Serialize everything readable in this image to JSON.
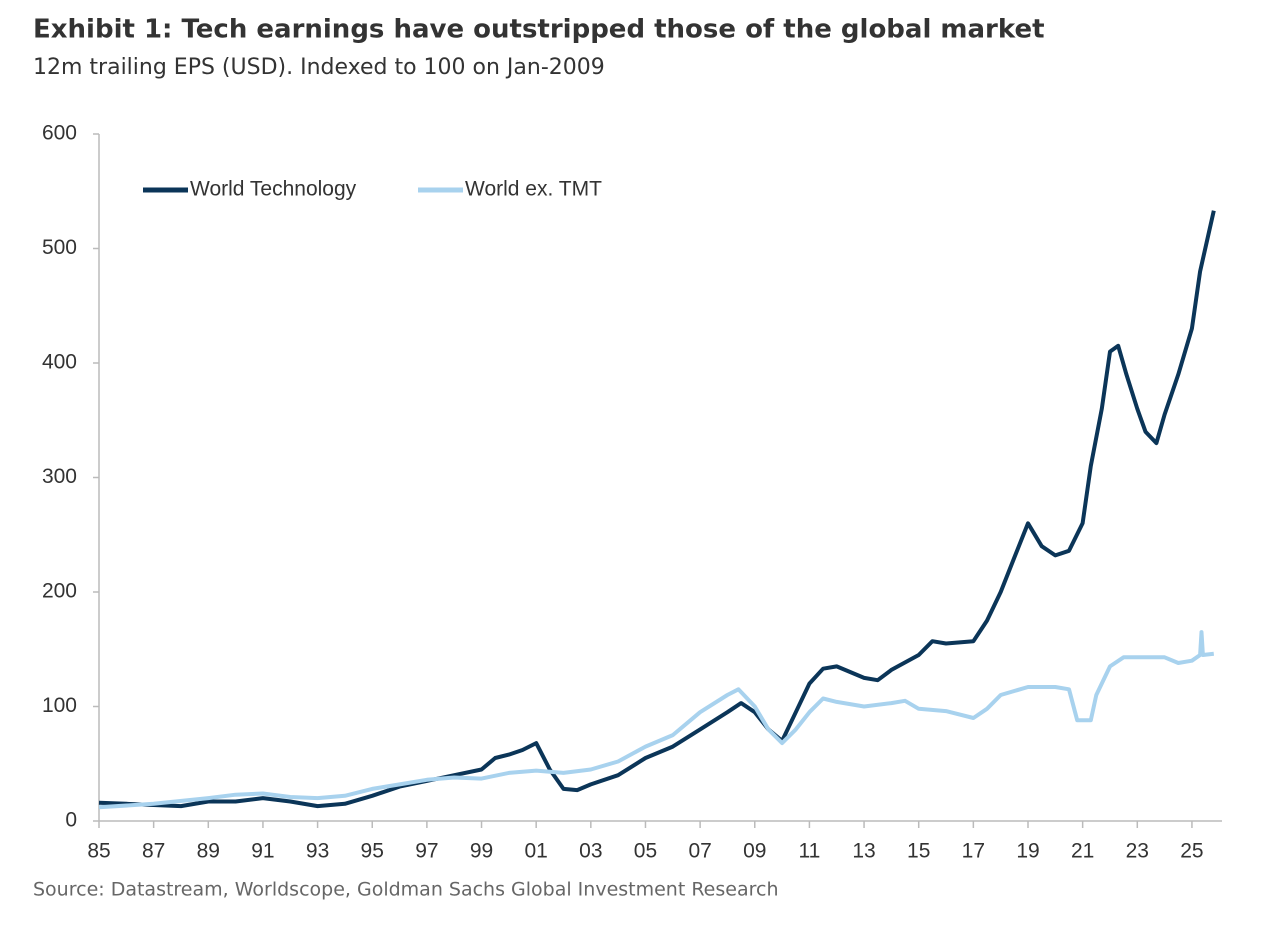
{
  "chart_data": {
    "type": "line",
    "title": "Exhibit 1: Tech earnings have outstripped those of the global market",
    "subtitle": "12m trailing EPS (USD). Indexed to 100 on Jan-2009",
    "source": "Source: Datastream, Worldscope, Goldman Sachs Global Investment Research",
    "xlim": [
      1985,
      2026.1
    ],
    "xticks": [
      {
        "value": 1985,
        "label": "85"
      },
      {
        "value": 1987,
        "label": "87"
      },
      {
        "value": 1989,
        "label": "89"
      },
      {
        "value": 1991,
        "label": "91"
      },
      {
        "value": 1993,
        "label": "93"
      },
      {
        "value": 1995,
        "label": "95"
      },
      {
        "value": 1997,
        "label": "97"
      },
      {
        "value": 1999,
        "label": "99"
      },
      {
        "value": 2001,
        "label": "01"
      },
      {
        "value": 2003,
        "label": "03"
      },
      {
        "value": 2005,
        "label": "05"
      },
      {
        "value": 2007,
        "label": "07"
      },
      {
        "value": 2009,
        "label": "09"
      },
      {
        "value": 2011,
        "label": "11"
      },
      {
        "value": 2013,
        "label": "13"
      },
      {
        "value": 2015,
        "label": "15"
      },
      {
        "value": 2017,
        "label": "17"
      },
      {
        "value": 2019,
        "label": "19"
      },
      {
        "value": 2021,
        "label": "21"
      },
      {
        "value": 2023,
        "label": "23"
      },
      {
        "value": 2025,
        "label": "25"
      }
    ],
    "ylim": [
      0,
      600
    ],
    "yticks": [
      0,
      100,
      200,
      300,
      400,
      500,
      600
    ],
    "series": [
      {
        "name": "World Technology",
        "color": "#0b3558",
        "x": [
          1985,
          1986,
          1987,
          1988,
          1989,
          1990,
          1991,
          1992,
          1993,
          1994,
          1995,
          1996,
          1997,
          1998,
          1999,
          1999.5,
          2000,
          2000.5,
          2001,
          2001.5,
          2002,
          2002.5,
          2003,
          2004,
          2005,
          2006,
          2007,
          2008,
          2008.5,
          2009,
          2009.5,
          2010,
          2010.5,
          2011,
          2011.5,
          2012,
          2013,
          2013.5,
          2014,
          2015,
          2015.5,
          2016,
          2017,
          2017.5,
          2018,
          2018.5,
          2019,
          2019.5,
          2020,
          2020.5,
          2021,
          2021.3,
          2021.7,
          2022,
          2022.3,
          2022.6,
          2023,
          2023.3,
          2023.7,
          2024,
          2024.5,
          2025,
          2025.3,
          2025.8
        ],
        "values": [
          16,
          15,
          14,
          13,
          17,
          17,
          20,
          17,
          13,
          15,
          22,
          30,
          35,
          40,
          45,
          55,
          58,
          62,
          68,
          45,
          28,
          27,
          32,
          40,
          55,
          65,
          80,
          95,
          103,
          95,
          80,
          70,
          95,
          120,
          133,
          135,
          125,
          123,
          132,
          145,
          157,
          155,
          157,
          175,
          200,
          230,
          260,
          240,
          232,
          236,
          260,
          310,
          360,
          410,
          415,
          390,
          360,
          340,
          330,
          355,
          390,
          430,
          480,
          533
        ]
      },
      {
        "name": "World ex. TMT",
        "color": "#a8d2ee",
        "x": [
          1985,
          1987,
          1989,
          1990,
          1991,
          1992,
          1993,
          1994,
          1995,
          1996,
          1997,
          1998,
          1999,
          2000,
          2001,
          2002,
          2003,
          2004,
          2005,
          2006,
          2007,
          2008,
          2008.4,
          2009,
          2009.5,
          2010,
          2010.5,
          2011,
          2011.5,
          2012,
          2013,
          2014,
          2014.5,
          2015,
          2016,
          2017,
          2017.5,
          2018,
          2019,
          2020,
          2020.5,
          2020.8,
          2021.3,
          2021.5,
          2022,
          2022.5,
          2023,
          2024,
          2024.5,
          2025,
          2025.3,
          2025.35,
          2025.4,
          2025.8
        ],
        "values": [
          12,
          15,
          20,
          23,
          24,
          21,
          20,
          22,
          28,
          32,
          36,
          38,
          37,
          42,
          44,
          42,
          45,
          52,
          65,
          75,
          95,
          110,
          115,
          100,
          80,
          68,
          80,
          95,
          107,
          104,
          100,
          103,
          105,
          98,
          96,
          90,
          98,
          110,
          117,
          117,
          115,
          88,
          88,
          110,
          135,
          143,
          143,
          143,
          138,
          140,
          145,
          165,
          145,
          146
        ]
      }
    ]
  }
}
